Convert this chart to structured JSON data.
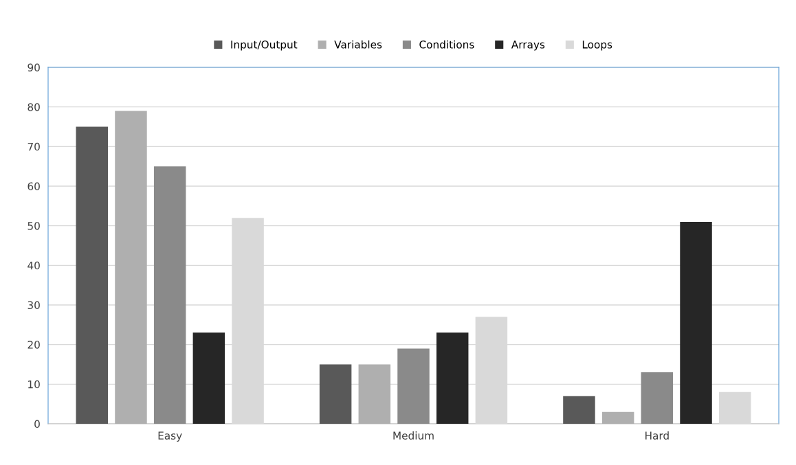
{
  "chart_data": {
    "type": "bar",
    "categories": [
      "Easy",
      "Medium",
      "Hard"
    ],
    "series": [
      {
        "name": "Input/Output",
        "color": "#595959",
        "values": [
          75,
          15,
          7
        ]
      },
      {
        "name": "Variables",
        "color": "#afafaf",
        "values": [
          79,
          15,
          3
        ]
      },
      {
        "name": "Conditions",
        "color": "#8a8a8a",
        "values": [
          65,
          19,
          13
        ]
      },
      {
        "name": "Arrays",
        "color": "#262626",
        "values": [
          23,
          23,
          51
        ]
      },
      {
        "name": "Loops",
        "color": "#d9d9d9",
        "values": [
          52,
          27,
          8
        ]
      }
    ],
    "ylim": [
      0,
      90
    ],
    "yticks": [
      0,
      10,
      20,
      30,
      40,
      50,
      60,
      70,
      80,
      90
    ],
    "grid": "y",
    "legend": "top"
  }
}
